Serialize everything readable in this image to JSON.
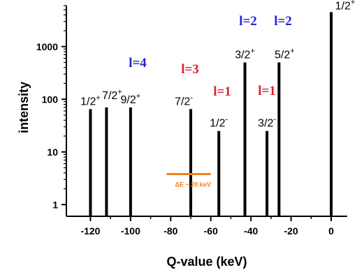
{
  "chart_data": {
    "type": "bar",
    "xlabel": "Q-value (keV)",
    "ylabel": "intensity",
    "x_ticks": [
      -120,
      -100,
      -80,
      -60,
      -40,
      -20,
      0
    ],
    "x_tick_labels": [
      "-120",
      "-100",
      "-80",
      "-60",
      "-40",
      "-20",
      "0"
    ],
    "y_scale": "log",
    "y_ticks": [
      1,
      10,
      100,
      1000
    ],
    "y_tick_labels": [
      "1",
      "10",
      "100",
      "1000"
    ],
    "xlim": [
      -132,
      8
    ],
    "ylim": [
      0.6,
      6000
    ],
    "grid": false,
    "peaks": [
      {
        "q": -120,
        "intensity": 65,
        "label": "1/2",
        "sup": "+"
      },
      {
        "q": -112,
        "intensity": 70,
        "label": "7/2",
        "sup": "+"
      },
      {
        "q": -100,
        "intensity": 70,
        "label": "9/2",
        "sup": "+"
      },
      {
        "q": -70,
        "intensity": 65,
        "label": "7/2",
        "sup": "-"
      },
      {
        "q": -56,
        "intensity": 25,
        "label": "1/2",
        "sup": "-"
      },
      {
        "q": -43,
        "intensity": 500,
        "label": "3/2",
        "sup": "+"
      },
      {
        "q": -32,
        "intensity": 25,
        "label": "3/2",
        "sup": "-"
      },
      {
        "q": -26,
        "intensity": 500,
        "label": "5/2",
        "sup": "+"
      },
      {
        "q": 0,
        "intensity": 4500,
        "label": "1/2",
        "sup": "+"
      }
    ],
    "l_annotations": [
      {
        "text": "l=4",
        "color": "#2323d6"
      },
      {
        "text": "l=3",
        "color": "#e0202a"
      },
      {
        "text": "l=1",
        "color": "#e0202a"
      },
      {
        "text": "l=2",
        "color": "#2323d6"
      },
      {
        "text": "l=2",
        "color": "#2323d6"
      },
      {
        "text": "l=1",
        "color": "#e0202a"
      }
    ],
    "resolution": {
      "label": "ΔE ~ 20 keV",
      "q_start": -82,
      "q_end": -60,
      "intensity": 3.8,
      "color": "#f07f1e"
    }
  }
}
